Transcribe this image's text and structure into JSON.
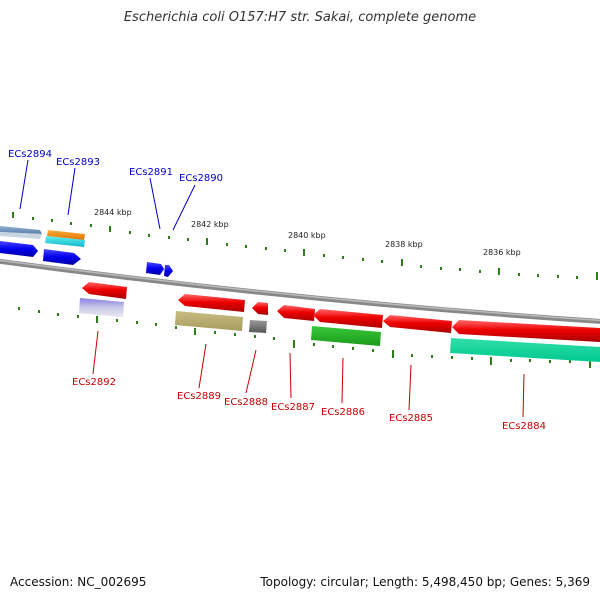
{
  "header": {
    "title": "Escherichia coli O157:H7 str. Sakai, complete genome"
  },
  "footer": {
    "accession": "Accession: NC_002695",
    "topology": "Topology: circular; Length: 5,498,450 bp; Genes: 5,369"
  },
  "scale_labels": [
    "2844 kbp",
    "2842 kbp",
    "2840 kbp",
    "2838 kbp",
    "2836 kbp"
  ],
  "genes_top": [
    "ECs2894",
    "ECs2893",
    "ECs2891",
    "ECs2890"
  ],
  "genes_bottom": [
    "ECs2892",
    "ECs2889",
    "ECs2888",
    "ECs2887",
    "ECs2886",
    "ECs2885",
    "ECs2884"
  ],
  "colors": {
    "forward_label": "#0000c8",
    "reverse_label": "#c80000",
    "backbone": "#888888",
    "tick": "#2e7d1a"
  }
}
